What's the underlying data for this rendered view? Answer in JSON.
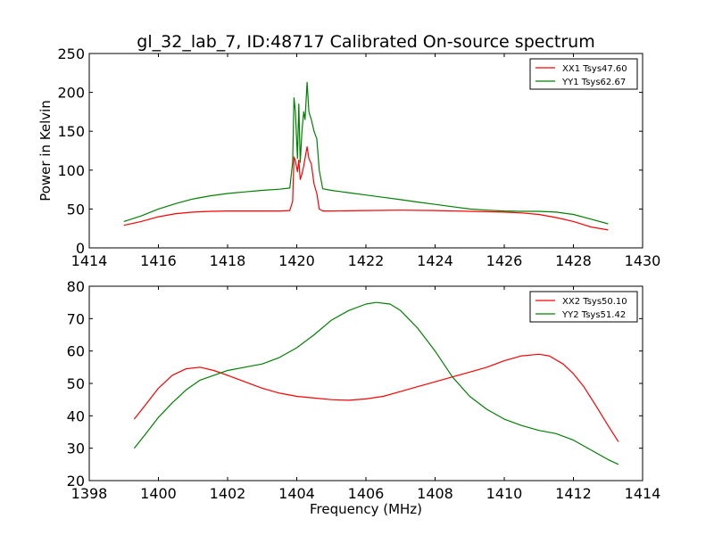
{
  "chart_data": [
    {
      "type": "line",
      "title": "gl_32_lab_7, ID:48717 Calibrated On-source spectrum",
      "xlabel": "",
      "ylabel": "Power in Kelvin",
      "xlim": [
        1414,
        1430
      ],
      "ylim": [
        0,
        250
      ],
      "xticks": [
        1414,
        1416,
        1418,
        1420,
        1422,
        1424,
        1426,
        1428,
        1430
      ],
      "yticks": [
        0,
        50,
        100,
        150,
        200,
        250
      ],
      "grid": false,
      "legend": "top-right",
      "series": [
        {
          "name": "XX1 Tsys47.60",
          "color": "#ff0000",
          "points": [
            [
              1415.0,
              29
            ],
            [
              1415.5,
              34
            ],
            [
              1416.0,
              40
            ],
            [
              1416.5,
              44
            ],
            [
              1417.0,
              46
            ],
            [
              1417.5,
              47
            ],
            [
              1418.0,
              47.5
            ],
            [
              1418.5,
              47.5
            ],
            [
              1419.0,
              47.5
            ],
            [
              1419.5,
              47.5
            ],
            [
              1419.8,
              48
            ],
            [
              1419.88,
              60
            ],
            [
              1419.92,
              117
            ],
            [
              1419.96,
              112
            ],
            [
              1420.02,
              98
            ],
            [
              1420.06,
              113
            ],
            [
              1420.1,
              88
            ],
            [
              1420.15,
              95
            ],
            [
              1420.2,
              105
            ],
            [
              1420.25,
              118
            ],
            [
              1420.3,
              130
            ],
            [
              1420.35,
              115
            ],
            [
              1420.42,
              108
            ],
            [
              1420.5,
              82
            ],
            [
              1420.58,
              70
            ],
            [
              1420.65,
              50
            ],
            [
              1420.75,
              47.5
            ],
            [
              1421.0,
              47.5
            ],
            [
              1422.0,
              48
            ],
            [
              1423.0,
              48.5
            ],
            [
              1424.0,
              48
            ],
            [
              1425.0,
              47
            ],
            [
              1426.0,
              46
            ],
            [
              1426.5,
              45
            ],
            [
              1427.0,
              43
            ],
            [
              1427.5,
              39
            ],
            [
              1428.0,
              34
            ],
            [
              1428.5,
              27
            ],
            [
              1429.0,
              23
            ]
          ]
        },
        {
          "name": "YY1 Tsys62.67",
          "color": "#008000",
          "points": [
            [
              1415.0,
              34
            ],
            [
              1415.5,
              41
            ],
            [
              1416.0,
              50
            ],
            [
              1416.5,
              57
            ],
            [
              1417.0,
              63
            ],
            [
              1417.5,
              67
            ],
            [
              1418.0,
              70
            ],
            [
              1418.5,
              72
            ],
            [
              1419.0,
              74
            ],
            [
              1419.5,
              75.5
            ],
            [
              1419.8,
              77
            ],
            [
              1419.88,
              110
            ],
            [
              1419.92,
              193
            ],
            [
              1419.96,
              175
            ],
            [
              1420.02,
              115
            ],
            [
              1420.06,
              185
            ],
            [
              1420.1,
              110
            ],
            [
              1420.15,
              150
            ],
            [
              1420.2,
              175
            ],
            [
              1420.24,
              165
            ],
            [
              1420.3,
              213
            ],
            [
              1420.35,
              175
            ],
            [
              1420.42,
              165
            ],
            [
              1420.5,
              150
            ],
            [
              1420.58,
              140
            ],
            [
              1420.65,
              100
            ],
            [
              1420.75,
              76
            ],
            [
              1421.0,
              74
            ],
            [
              1421.5,
              71
            ],
            [
              1422.0,
              68
            ],
            [
              1422.5,
              65
            ],
            [
              1423.0,
              62
            ],
            [
              1423.5,
              59
            ],
            [
              1424.0,
              56
            ],
            [
              1424.5,
              53
            ],
            [
              1425.0,
              50
            ],
            [
              1425.5,
              48.5
            ],
            [
              1426.0,
              47.5
            ],
            [
              1426.5,
              47
            ],
            [
              1427.0,
              47
            ],
            [
              1427.5,
              46
            ],
            [
              1428.0,
              43
            ],
            [
              1428.5,
              37
            ],
            [
              1429.0,
              31
            ]
          ]
        }
      ]
    },
    {
      "type": "line",
      "title": "",
      "xlabel": "Frequency (MHz)",
      "ylabel": "",
      "xlim": [
        1398,
        1414
      ],
      "ylim": [
        20,
        80
      ],
      "xticks": [
        1398,
        1400,
        1402,
        1404,
        1406,
        1408,
        1410,
        1412,
        1414
      ],
      "yticks": [
        20,
        30,
        40,
        50,
        60,
        70,
        80
      ],
      "grid": false,
      "legend": "top-right",
      "series": [
        {
          "name": "XX2 Tsys50.10",
          "color": "#ff0000",
          "points": [
            [
              1399.3,
              39
            ],
            [
              1399.6,
              43
            ],
            [
              1400.0,
              48.5
            ],
            [
              1400.4,
              52.5
            ],
            [
              1400.8,
              54.5
            ],
            [
              1401.2,
              55
            ],
            [
              1401.6,
              54
            ],
            [
              1402.0,
              52.5
            ],
            [
              1402.5,
              50.5
            ],
            [
              1403.0,
              48.5
            ],
            [
              1403.5,
              47
            ],
            [
              1404.0,
              46
            ],
            [
              1404.5,
              45.5
            ],
            [
              1405.0,
              45
            ],
            [
              1405.5,
              44.8
            ],
            [
              1406.0,
              45.2
            ],
            [
              1406.5,
              46
            ],
            [
              1407.0,
              47.5
            ],
            [
              1407.5,
              49
            ],
            [
              1408.0,
              50.5
            ],
            [
              1408.5,
              52
            ],
            [
              1409.0,
              53.5
            ],
            [
              1409.5,
              55
            ],
            [
              1410.0,
              57
            ],
            [
              1410.5,
              58.5
            ],
            [
              1411.0,
              59
            ],
            [
              1411.3,
              58.5
            ],
            [
              1411.7,
              56
            ],
            [
              1412.0,
              53
            ],
            [
              1412.3,
              49
            ],
            [
              1412.6,
              44
            ],
            [
              1413.0,
              37
            ],
            [
              1413.3,
              32
            ]
          ]
        },
        {
          "name": "YY2 Tsys51.42",
          "color": "#008000",
          "points": [
            [
              1399.3,
              30
            ],
            [
              1399.6,
              34
            ],
            [
              1400.0,
              39.5
            ],
            [
              1400.4,
              44
            ],
            [
              1400.8,
              48
            ],
            [
              1401.2,
              51
            ],
            [
              1401.6,
              52.5
            ],
            [
              1402.0,
              54
            ],
            [
              1402.5,
              55
            ],
            [
              1403.0,
              56
            ],
            [
              1403.5,
              58
            ],
            [
              1404.0,
              61
            ],
            [
              1404.5,
              65
            ],
            [
              1405.0,
              69.5
            ],
            [
              1405.5,
              72.5
            ],
            [
              1406.0,
              74.5
            ],
            [
              1406.3,
              75
            ],
            [
              1406.7,
              74.5
            ],
            [
              1407.0,
              72.5
            ],
            [
              1407.5,
              67
            ],
            [
              1408.0,
              60
            ],
            [
              1408.5,
              52
            ],
            [
              1409.0,
              46
            ],
            [
              1409.5,
              42
            ],
            [
              1410.0,
              39
            ],
            [
              1410.5,
              37
            ],
            [
              1411.0,
              35.5
            ],
            [
              1411.5,
              34.5
            ],
            [
              1412.0,
              32.5
            ],
            [
              1412.5,
              29.5
            ],
            [
              1413.0,
              26.5
            ],
            [
              1413.3,
              25
            ]
          ]
        }
      ]
    }
  ]
}
